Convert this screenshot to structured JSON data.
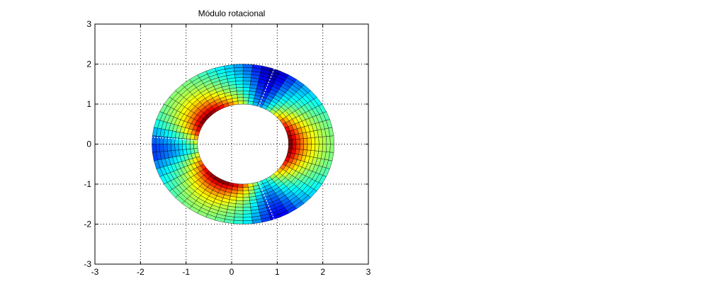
{
  "chart_data": {
    "type": "heatmap",
    "title": "Módulo rotacional",
    "xlabel": "",
    "ylabel": "",
    "xlim": [
      -3,
      3
    ],
    "ylim": [
      -3,
      3
    ],
    "x_ticks": [
      "-3",
      "-2",
      "-1",
      "0",
      "1",
      "2",
      "3"
    ],
    "y_ticks": [
      "-3",
      "-2",
      "-1",
      "0",
      "1",
      "2",
      "3"
    ],
    "grid": "dotted",
    "colormap": "jet",
    "domain": {
      "shape": "annulus",
      "center": [
        0.25,
        0
      ],
      "inner_radius_x": 1.0,
      "inner_radius_y": 1.0,
      "outer_radius_x": 2.0,
      "outer_radius_y": 2.0,
      "radial_cells": 12,
      "angular_cells": 60
    },
    "field": {
      "description_peaks_deg": [
        140,
        0,
        240
      ],
      "minima_deg": [
        70,
        180,
        290
      ],
      "peak_value": 1.0,
      "min_value": 0.0
    },
    "annotation_lines": [
      {
        "angle_deg": 70
      },
      {
        "angle_deg": 175
      },
      {
        "angle_deg": 290
      }
    ]
  }
}
